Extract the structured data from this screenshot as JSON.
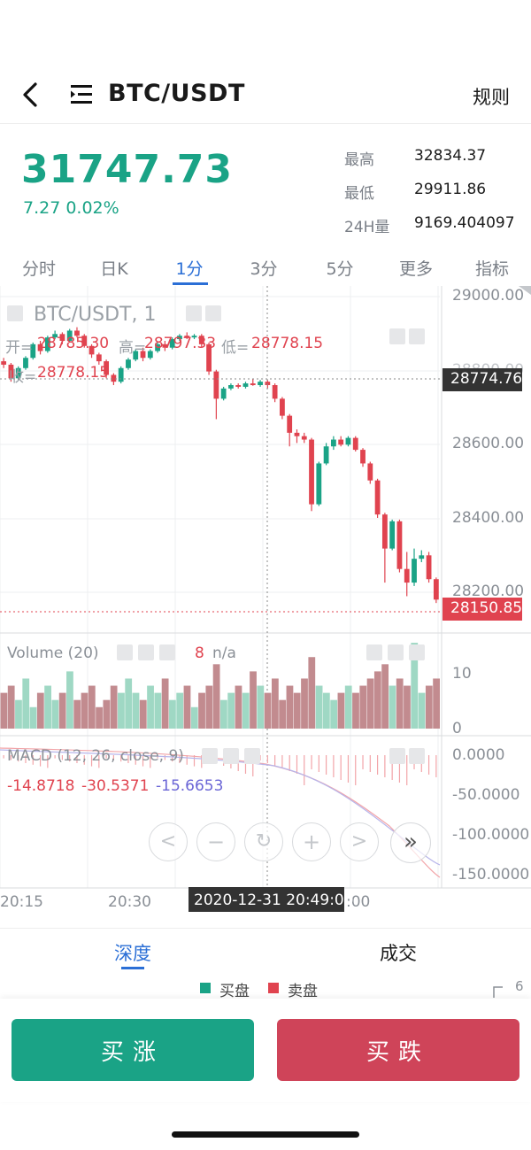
{
  "header": {
    "pair": "BTC/USDT",
    "rules_label": "规则"
  },
  "ticker": {
    "price": "31747.73",
    "change": "7.27  0.02%",
    "stats": [
      {
        "label": "最高",
        "value": "32834.37"
      },
      {
        "label": "最低",
        "value": "29911.86"
      },
      {
        "label": "24H量",
        "value": "9169.404097"
      }
    ]
  },
  "tabs": [
    "分时",
    "日K",
    "1分",
    "3分",
    "5分",
    "更多",
    "指标"
  ],
  "active_tab": "1分",
  "chart": {
    "symbol_legend": "BTC/USDT, 1",
    "ohlc": {
      "open_label": "开=",
      "open": "28785.30",
      "high_label": "高=",
      "high": "28797.33",
      "low_label": "低=",
      "low": "28778.15",
      "close_label": "收=",
      "close": "28778.15"
    },
    "crosshair_price": "28774.76",
    "last_price": "28150.85",
    "price_axis": [
      "29000.00",
      "28800.00",
      "28600.00",
      "28400.00",
      "28200.00"
    ],
    "volume_label": "Volume (20)",
    "volume_value": "8",
    "volume_na": "n/a",
    "volume_axis": [
      "10",
      "0"
    ],
    "macd_label": "MACD (12, 26, close, 9)",
    "macd_values": [
      "-14.8718",
      "-30.5371",
      "-15.6653"
    ],
    "macd_axis": [
      "0.0000",
      "-50.0000",
      "-100.0000",
      "-150.0000"
    ],
    "time_axis": [
      "20:15",
      "20:30",
      "20:49:00",
      ":00"
    ],
    "crosshair_time": "2020-12-31 20:49:00",
    "colors": {
      "up": "#1aa386",
      "down": "#e0434f",
      "up_vol": "#9fd8c4",
      "down_vol": "#c28b8f",
      "axis_text": "#8a8f96",
      "label_red": "#e0434f"
    }
  },
  "chart_data": {
    "type": "candlestick",
    "interval": "1分",
    "ylim": [
      28150,
      29050
    ],
    "candles": [
      [
        28850,
        28840,
        28860,
        28830
      ],
      [
        28840,
        28800,
        28845,
        28790
      ],
      [
        28800,
        28830,
        28835,
        28795
      ],
      [
        28830,
        28860,
        28865,
        28825
      ],
      [
        28860,
        28900,
        28905,
        28855
      ],
      [
        28900,
        28880,
        28910,
        28870
      ],
      [
        28880,
        28920,
        28925,
        28875
      ],
      [
        28920,
        28930,
        28940,
        28915
      ],
      [
        28930,
        28910,
        28935,
        28900
      ],
      [
        28910,
        28940,
        28945,
        28905
      ],
      [
        28940,
        28925,
        28950,
        28920
      ],
      [
        28925,
        28895,
        28930,
        28890
      ],
      [
        28895,
        28870,
        28900,
        28860
      ],
      [
        28870,
        28850,
        28875,
        28840
      ],
      [
        28850,
        28810,
        28855,
        28800
      ],
      [
        28810,
        28790,
        28815,
        28780
      ],
      [
        28790,
        28830,
        28835,
        28785
      ],
      [
        28830,
        28855,
        28860,
        28825
      ],
      [
        28855,
        28880,
        28885,
        28850
      ],
      [
        28880,
        28860,
        28890,
        28850
      ],
      [
        28860,
        28880,
        28885,
        28855
      ],
      [
        28880,
        28900,
        28905,
        28875
      ],
      [
        28900,
        28890,
        28910,
        28880
      ],
      [
        28890,
        28915,
        28920,
        28885
      ],
      [
        28915,
        28925,
        28930,
        28910
      ],
      [
        28925,
        28920,
        28935,
        28915
      ],
      [
        28920,
        28925,
        28930,
        28915
      ],
      [
        28925,
        28900,
        28930,
        28890
      ],
      [
        28900,
        28820,
        28905,
        28810
      ],
      [
        28820,
        28740,
        28825,
        28680
      ],
      [
        28740,
        28770,
        28775,
        28735
      ],
      [
        28770,
        28780,
        28785,
        28765
      ],
      [
        28780,
        28775,
        28785,
        28770
      ],
      [
        28775,
        28785,
        28790,
        28770
      ],
      [
        28785,
        28780,
        28797,
        28778
      ],
      [
        28780,
        28790,
        28795,
        28775
      ],
      [
        28790,
        28780,
        28795,
        28770
      ],
      [
        28780,
        28740,
        28785,
        28730
      ],
      [
        28740,
        28690,
        28745,
        28680
      ],
      [
        28690,
        28640,
        28695,
        28600
      ],
      [
        28640,
        28630,
        28650,
        28610
      ],
      [
        28630,
        28620,
        28640,
        28610
      ],
      [
        28620,
        28430,
        28625,
        28410
      ],
      [
        28430,
        28550,
        28555,
        28425
      ],
      [
        28550,
        28600,
        28610,
        28545
      ],
      [
        28600,
        28620,
        28630,
        28590
      ],
      [
        28620,
        28605,
        28630,
        28600
      ],
      [
        28605,
        28625,
        28630,
        28600
      ],
      [
        28625,
        28590,
        28630,
        28585
      ],
      [
        28590,
        28550,
        28595,
        28540
      ],
      [
        28550,
        28500,
        28555,
        28490
      ],
      [
        28500,
        28400,
        28505,
        28390
      ],
      [
        28400,
        28300,
        28405,
        28200
      ],
      [
        28300,
        28380,
        28385,
        28295
      ],
      [
        28380,
        28240,
        28385,
        28230
      ],
      [
        28240,
        28200,
        28290,
        28160
      ],
      [
        28200,
        28270,
        28300,
        28190
      ],
      [
        28270,
        28280,
        28295,
        28260
      ],
      [
        28280,
        28210,
        28290,
        28200
      ],
      [
        28210,
        28150,
        28215,
        28140
      ]
    ],
    "volume": [
      5,
      6,
      4,
      7,
      3,
      5,
      6,
      4,
      5,
      8,
      4,
      5,
      6,
      3,
      4,
      6,
      5,
      7,
      5,
      4,
      6,
      5,
      7,
      4,
      5,
      6,
      3,
      5,
      6,
      9,
      4,
      5,
      6,
      5,
      8,
      6,
      5,
      7,
      4,
      6,
      5,
      7,
      10,
      6,
      5,
      4,
      5,
      6,
      5,
      6,
      7,
      8,
      9,
      6,
      7,
      6,
      12,
      5,
      6,
      7
    ]
  },
  "controls": [
    "<",
    "−",
    "↻",
    "+",
    ">",
    "»"
  ],
  "bottom": {
    "tab_depth": "深度",
    "tab_trades": "成交",
    "legend_buy": "买盘",
    "legend_sell": "卖盘",
    "side_value": "6",
    "btn_up": "买涨",
    "btn_down": "买跌"
  }
}
